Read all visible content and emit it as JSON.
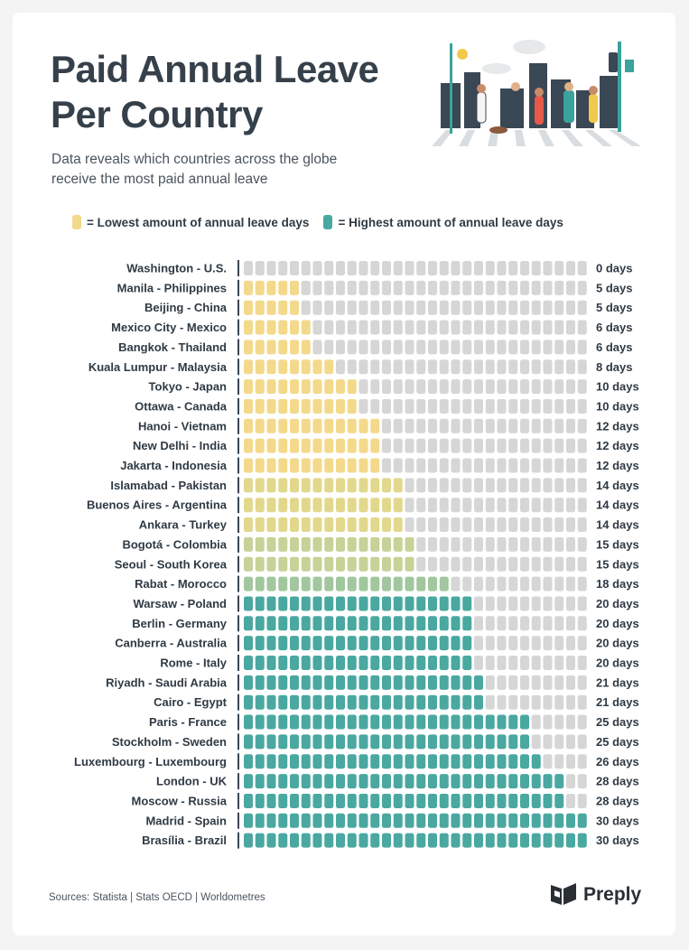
{
  "header": {
    "title_line1": "Paid Annual Leave",
    "title_line2": "Per Country",
    "subtitle_line1": "Data reveals which countries across the globe",
    "subtitle_line2": "receive the most paid annual leave"
  },
  "legend": {
    "low_label": "= Lowest amount of annual leave days",
    "high_label": "= Highest amount of annual leave days",
    "low_color": "#f3d98b",
    "high_color": "#4aa8a0"
  },
  "footer": {
    "sources": "Sources: Statista | Stats OECD | Worldometres",
    "brand": "Preply"
  },
  "chart_data": {
    "type": "bar",
    "title": "Paid Annual Leave Per Country",
    "max_days": 30,
    "categories": [
      "Washington - U.S.",
      "Manila - Philippines",
      "Beijing - China",
      "Mexico City - Mexico",
      "Bangkok -  Thailand",
      "Kuala Lumpur - Malaysia",
      "Tokyo - Japan",
      "Ottawa - Canada",
      "Hanoi - Vietnam",
      "New Delhi - India",
      "Jakarta - Indonesia",
      "Islamabad - Pakistan",
      "Buenos Aires - Argentina",
      "Ankara - Turkey",
      "Bogotá - Colombia",
      "Seoul - South Korea",
      "Rabat - Morocco",
      "Warsaw - Poland",
      "Berlin - Germany",
      "Canberra - Australia",
      "Rome - Italy",
      "Riyadh - Saudi Arabia",
      "Cairo - Egypt",
      "Paris - France",
      "Stockholm - Sweden",
      "Luxembourg - Luxembourg",
      "London - UK",
      "Moscow - Russia",
      "Madrid - Spain",
      "Brasília - Brazil"
    ],
    "values": [
      0,
      5,
      5,
      6,
      6,
      8,
      10,
      10,
      12,
      12,
      12,
      14,
      14,
      14,
      15,
      15,
      18,
      20,
      20,
      20,
      20,
      21,
      21,
      25,
      25,
      26,
      28,
      28,
      30,
      30
    ],
    "value_labels": [
      "0 days",
      "5 days",
      "5 days",
      "6 days",
      "6 days",
      "8 days",
      "10 days",
      "10 days",
      "12 days",
      "12 days",
      "12 days",
      "14 days",
      "14 days",
      "14 days",
      "15 days",
      "15 days",
      "18 days",
      "20 days",
      "20 days",
      "20 days",
      "20 days",
      "21 days",
      "21 days",
      "25 days",
      "25 days",
      "26 days",
      "28 days",
      "28 days",
      "30 days",
      "30 days"
    ],
    "colors": {
      "empty": "#d6d6d6",
      "gradient": [
        "#f3d98b",
        "#e2d88d",
        "#c6d297",
        "#a2c79e",
        "#4aa8a0"
      ]
    }
  }
}
